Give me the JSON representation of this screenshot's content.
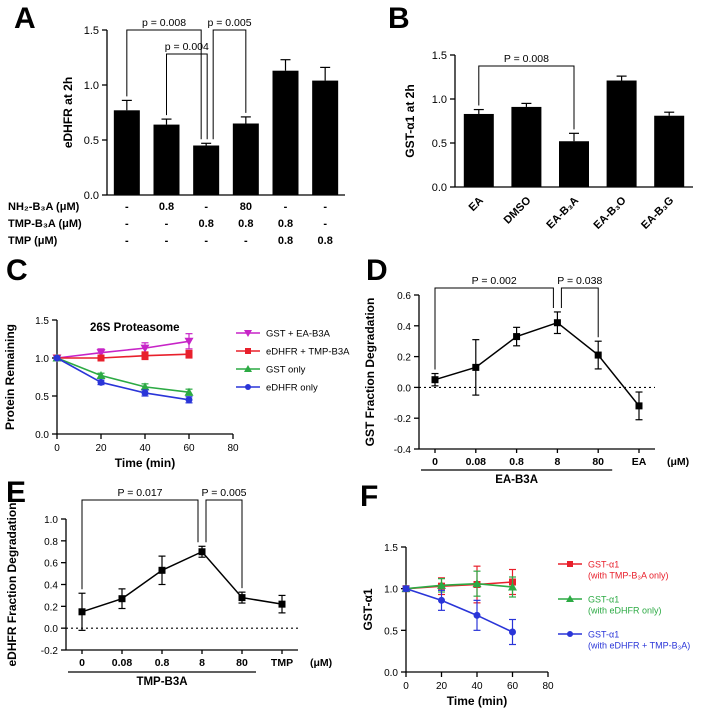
{
  "figure": {
    "panels": [
      {
        "letter": "A"
      },
      {
        "letter": "B"
      },
      {
        "letter": "C"
      },
      {
        "letter": "D"
      },
      {
        "letter": "E"
      },
      {
        "letter": "F"
      }
    ]
  },
  "chart_data": [
    {
      "id": "A",
      "type": "bar",
      "ylabel": "eDHFR at 2h",
      "ylim": [
        0,
        1.5
      ],
      "yticks": [
        "0.0",
        "0.5",
        "1.0",
        "1.5"
      ],
      "values": [
        0.77,
        0.64,
        0.45,
        0.65,
        1.13,
        1.04
      ],
      "errors": [
        0.09,
        0.05,
        0.02,
        0.06,
        0.1,
        0.12
      ],
      "bar_color": "#000000",
      "brackets": [
        {
          "label": "p = 0.008",
          "from": 0,
          "to": 2,
          "tier": 0,
          "dx_to": -5
        },
        {
          "label": "p = 0.004",
          "from": 1,
          "to": 2,
          "tier": 1,
          "dx_to": 1
        },
        {
          "label": "p = 0.005",
          "from": 2,
          "to": 3,
          "tier": 0,
          "dx_from": 7
        }
      ],
      "dose_table": [
        {
          "label": "NH₂-B₃A (μM)",
          "values": [
            "-",
            "0.8",
            "-",
            "80",
            "-",
            "-"
          ]
        },
        {
          "label": "TMP-B₃A (μM)",
          "values": [
            "-",
            "-",
            "0.8",
            "0.8",
            "0.8",
            "-"
          ]
        },
        {
          "label": "TMP (μM)",
          "values": [
            "-",
            "-",
            "-",
            "-",
            "0.8",
            "0.8"
          ]
        }
      ]
    },
    {
      "id": "B",
      "type": "bar",
      "ylabel": "GST-α1 at 2h",
      "ylim": [
        0,
        1.5
      ],
      "yticks": [
        "0.0",
        "0.5",
        "1.0",
        "1.5"
      ],
      "categories": [
        "EA",
        "DMSO",
        "EA-B₃A",
        "EA-B₃O",
        "EA-B₃G"
      ],
      "values": [
        0.83,
        0.91,
        0.52,
        1.21,
        0.81
      ],
      "errors": [
        0.05,
        0.04,
        0.09,
        0.05,
        0.04
      ],
      "bar_color": "#000000",
      "brackets": [
        {
          "label": "P = 0.008",
          "from": 0,
          "to": 2,
          "tier": 0
        }
      ]
    },
    {
      "id": "C",
      "type": "line",
      "title": "26S Proteasome",
      "xlabel": "Time (min)",
      "ylabel": "Protein Remaining",
      "xlim": [
        0,
        80
      ],
      "xticks": [
        "0",
        "20",
        "40",
        "60",
        "80"
      ],
      "ylim": [
        0,
        1.5
      ],
      "yticks": [
        "0.0",
        "0.5",
        "1.0",
        "1.5"
      ],
      "x": [
        0,
        20,
        40,
        60
      ],
      "legend_position": "right",
      "series": [
        {
          "name": "GST + EA-B3A",
          "color": "#c724c7",
          "marker": "triangle-down",
          "values": [
            1.0,
            1.07,
            1.13,
            1.22
          ],
          "errors": [
            0.02,
            0.05,
            0.07,
            0.1
          ]
        },
        {
          "name": "eDHFR + TMP-B3A",
          "color": "#e8202c",
          "marker": "square",
          "values": [
            1.0,
            1.0,
            1.03,
            1.05
          ],
          "errors": [
            0.02,
            0.03,
            0.05,
            0.05
          ]
        },
        {
          "name": "GST only",
          "color": "#2caa44",
          "marker": "triangle",
          "values": [
            1.0,
            0.77,
            0.62,
            0.55
          ],
          "errors": [
            0.02,
            0.03,
            0.04,
            0.04
          ]
        },
        {
          "name": "eDHFR only",
          "color": "#2a35d8",
          "marker": "circle",
          "values": [
            1.0,
            0.68,
            0.54,
            0.45
          ],
          "errors": [
            0.02,
            0.03,
            0.04,
            0.04
          ]
        }
      ]
    },
    {
      "id": "D",
      "type": "dose",
      "ylabel": "GST Fraction Degradation",
      "ylim": [
        -0.4,
        0.6
      ],
      "yticks": [
        "-0.4",
        "-0.2",
        "0.0",
        "0.2",
        "0.4",
        "0.6"
      ],
      "categories": [
        "0",
        "0.08",
        "0.8",
        "8",
        "80",
        "EA"
      ],
      "values": [
        0.05,
        0.13,
        0.33,
        0.42,
        0.21,
        -0.12
      ],
      "errors": [
        0.04,
        0.18,
        0.06,
        0.07,
        0.09,
        0.09
      ],
      "line_color": "#000000",
      "marker": "square",
      "zero_line": true,
      "group_label": "EA-B3A",
      "group_span": [
        0,
        4
      ],
      "unit_label": "(μM)",
      "brackets": [
        {
          "label": "P = 0.002",
          "from": 0,
          "to": 3,
          "tier": 0,
          "dx_to": -4
        },
        {
          "label": "P = 0.038",
          "from": 3,
          "to": 4,
          "tier": 0,
          "dx_from": 4
        }
      ]
    },
    {
      "id": "E",
      "type": "dose",
      "ylabel": "eDHFR Fraction Degradation",
      "ylim": [
        -0.2,
        1.0
      ],
      "yticks": [
        "-0.2",
        "0.0",
        "0.2",
        "0.4",
        "0.6",
        "0.8",
        "1.0"
      ],
      "categories": [
        "0",
        "0.08",
        "0.8",
        "8",
        "80",
        "TMP"
      ],
      "values": [
        0.15,
        0.27,
        0.53,
        0.7,
        0.28,
        0.22
      ],
      "errors": [
        0.17,
        0.09,
        0.13,
        0.05,
        0.05,
        0.08
      ],
      "line_color": "#000000",
      "marker": "square",
      "zero_line": true,
      "group_label": "TMP-B3A",
      "group_span": [
        0,
        4
      ],
      "unit_label": "(μM)",
      "brackets": [
        {
          "label": "P = 0.017",
          "from": 0,
          "to": 3,
          "tier": 0,
          "dx_to": -4
        },
        {
          "label": "P = 0.005",
          "from": 3,
          "to": 4,
          "tier": 0,
          "dx_from": 4
        }
      ]
    },
    {
      "id": "F",
      "type": "line",
      "xlabel": "Time (min)",
      "ylabel": "GST-α1",
      "xlim": [
        0,
        80
      ],
      "xticks": [
        "0",
        "20",
        "40",
        "60",
        "80"
      ],
      "ylim": [
        0,
        1.5
      ],
      "yticks": [
        "0.0",
        "0.5",
        "1.0",
        "1.5"
      ],
      "x": [
        0,
        20,
        40,
        60
      ],
      "legend_position": "right",
      "legend_colored_text": true,
      "series": [
        {
          "name": "GST-α1",
          "name2": "(with TMP-B₃A only)",
          "color": "#e8202c",
          "marker": "square",
          "values": [
            1.0,
            1.03,
            1.05,
            1.08
          ],
          "errors": [
            0.03,
            0.1,
            0.22,
            0.15
          ]
        },
        {
          "name": "GST-α1",
          "name2": "(with eDHFR only)",
          "color": "#2caa44",
          "marker": "triangle",
          "values": [
            1.0,
            1.04,
            1.06,
            1.02
          ],
          "errors": [
            0.03,
            0.08,
            0.15,
            0.12
          ]
        },
        {
          "name": "GST-α1",
          "name2": "(with eDHFR + TMP-B₃A)",
          "color": "#2a35d8",
          "marker": "circle",
          "values": [
            1.0,
            0.86,
            0.68,
            0.48
          ],
          "errors": [
            0.03,
            0.12,
            0.18,
            0.15
          ]
        }
      ]
    }
  ]
}
